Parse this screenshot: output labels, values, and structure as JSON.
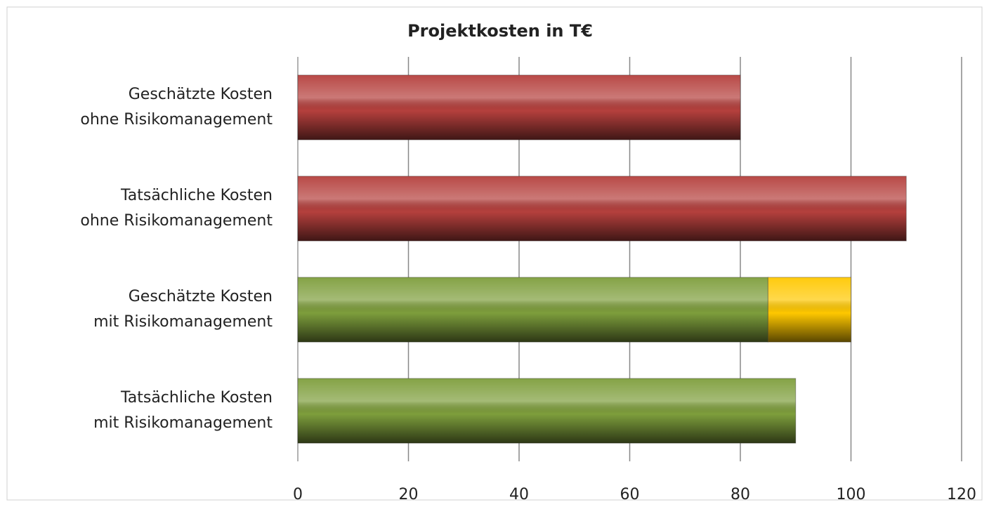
{
  "chart_data": {
    "type": "stacked-barh",
    "title": "Projektkosten in T€",
    "categories": [
      [
        "Geschätzte Kosten",
        "ohne Risikomanagement"
      ],
      [
        "Tatsächliche Kosten",
        "ohne Risikomanagement"
      ],
      [
        "Geschätzte Kosten",
        "mit Risikomanagement"
      ],
      [
        "Tatsächliche Kosten",
        "mit Risikomanagement"
      ]
    ],
    "series": [
      {
        "colors": [
          "#b5403d",
          "#b5403d",
          "#7e9e3c",
          "#7e9e3c"
        ],
        "values": [
          80,
          110,
          85,
          90
        ]
      },
      {
        "colors": [
          null,
          null,
          "#ffc800",
          null
        ],
        "values": [
          null,
          null,
          15,
          null
        ]
      }
    ],
    "xlim": [
      0,
      120
    ],
    "xticks": [
      0,
      20,
      40,
      60,
      80,
      100,
      120
    ],
    "grid": true
  }
}
